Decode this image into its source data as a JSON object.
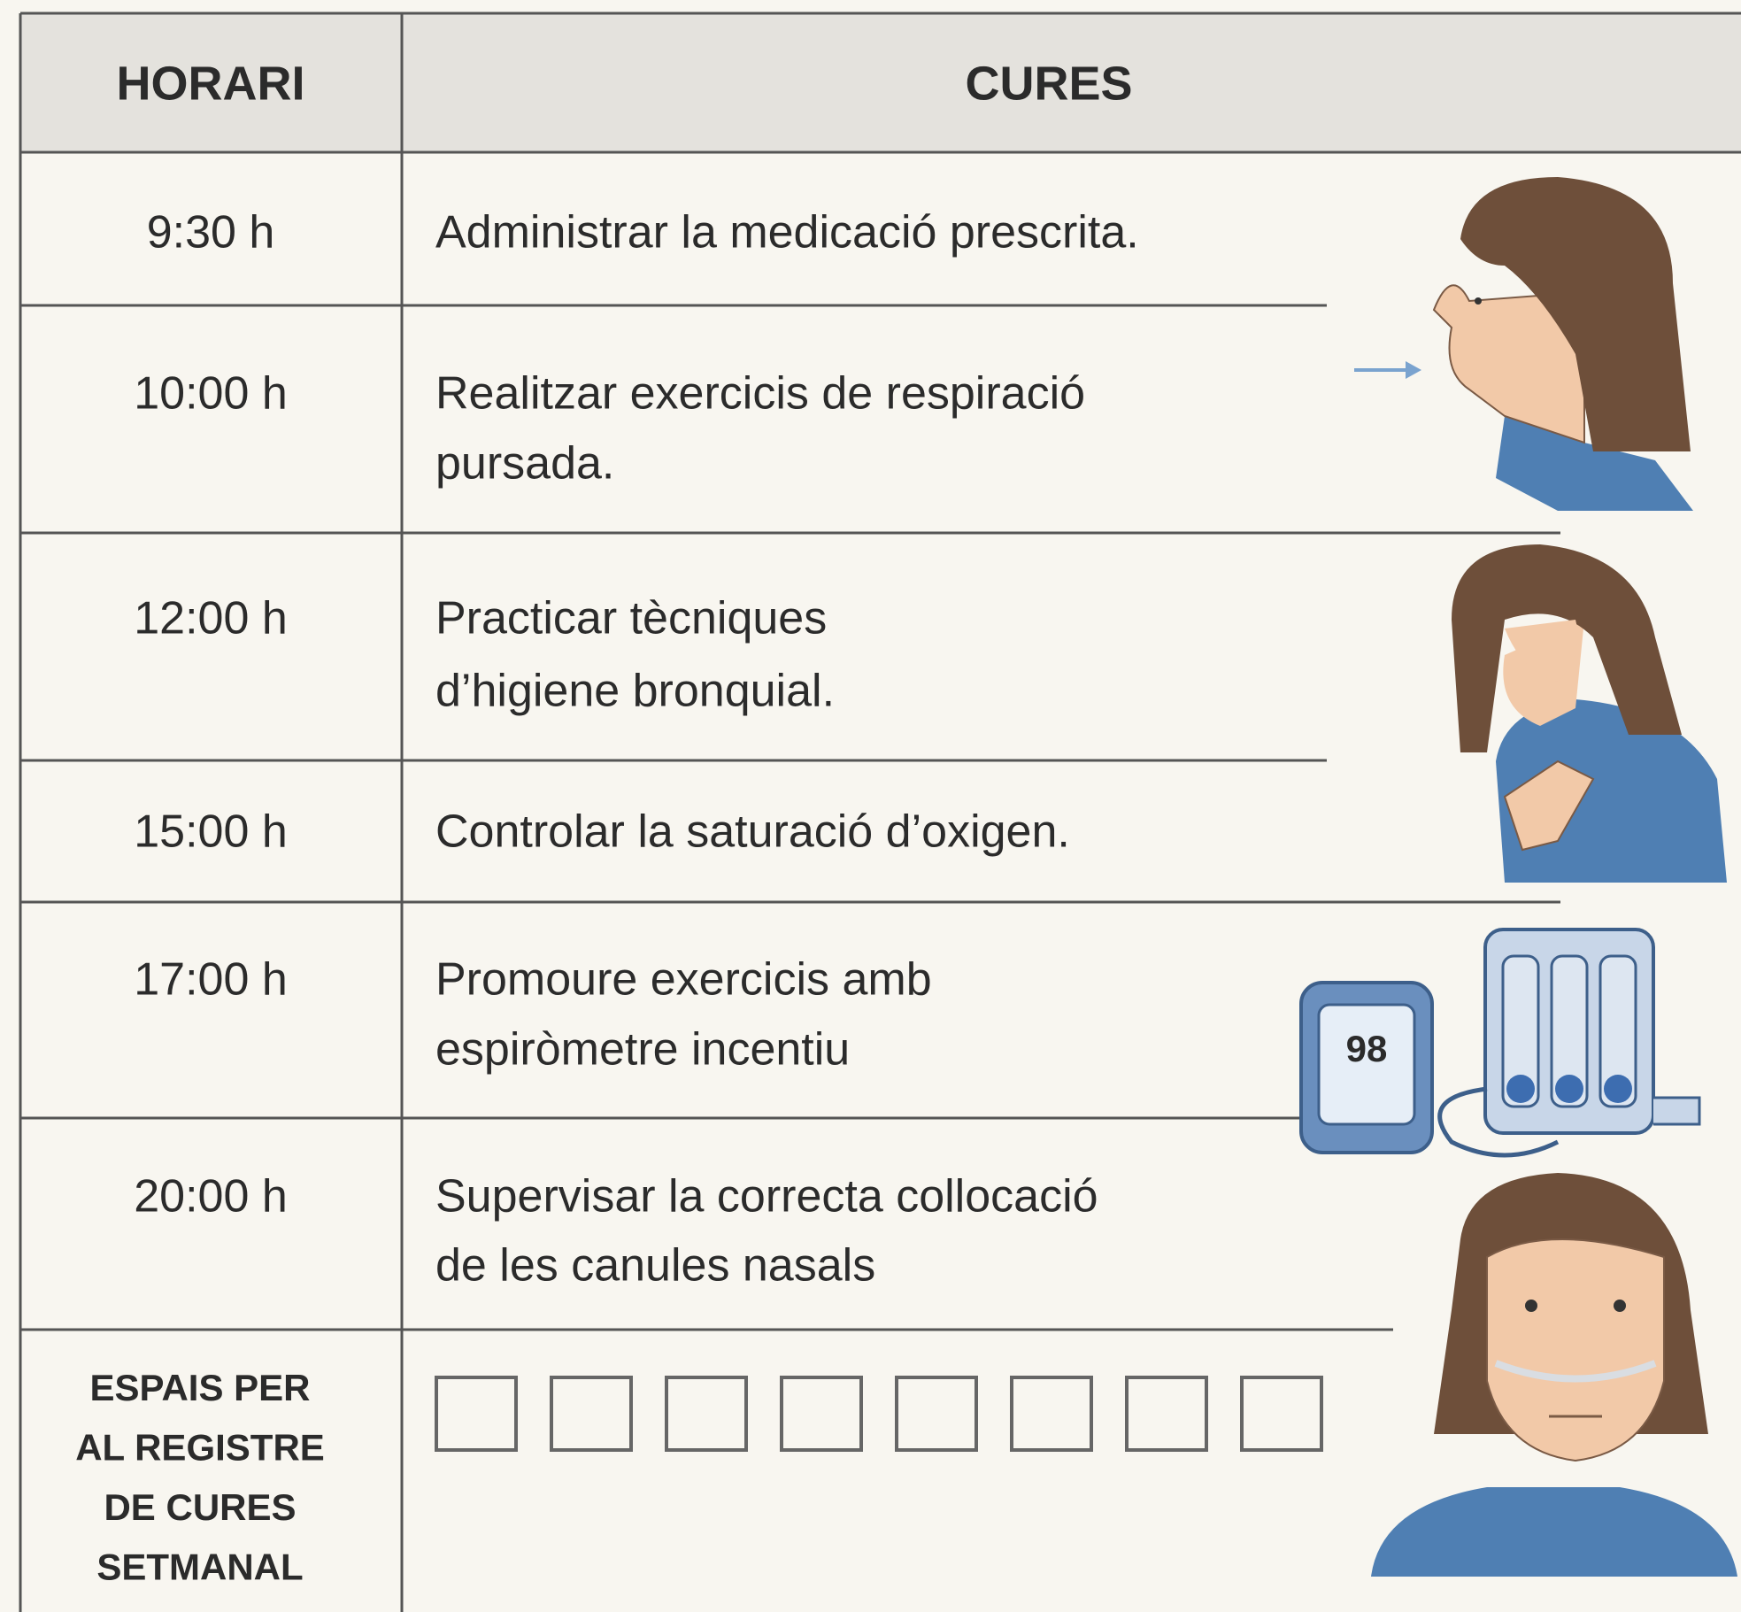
{
  "table": {
    "header": [
      "HORARI",
      "CURES"
    ],
    "rows": [
      {
        "time": "9:30 h",
        "care": [
          "Administrar la medicació prescrita."
        ]
      },
      {
        "time": "10:00 h",
        "care": [
          "Realitzar exercicis de respiració",
          "pursada."
        ]
      },
      {
        "time": "12:00 h",
        "care": [
          "Practicar tècniques",
          "d’higiene bronquial."
        ]
      },
      {
        "time": "15:00 h",
        "care": [
          "Controlar la saturació d’oxigen."
        ]
      },
      {
        "time": "17:00 h",
        "care": [
          "Promoure exercicis amb",
          "espiròmetre incentiu"
        ]
      },
      {
        "time": "20:00 h",
        "care": [
          "Supervisar la correcta collocació",
          "de les canules nasals"
        ]
      }
    ],
    "footer": {
      "label": [
        "ESPAIS PER",
        "AL REGISTRE",
        "DE CURES",
        "SETMANAL"
      ]
    },
    "illustration": {
      "oximeter_reading": "98"
    }
  }
}
